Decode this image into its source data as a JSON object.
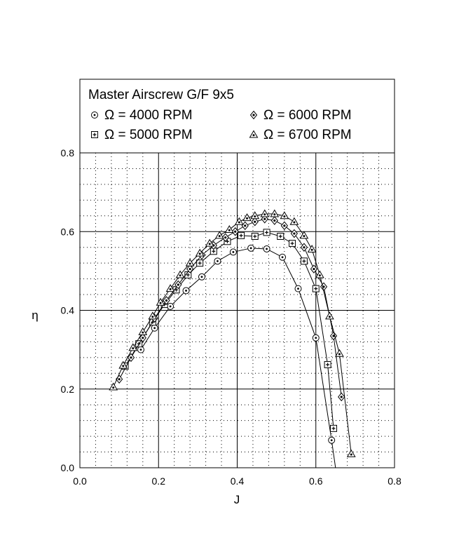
{
  "chart_data": {
    "type": "line",
    "title": "Master Airscrew G/F 9x5",
    "xlabel": "J",
    "ylabel": "η",
    "xlim": [
      0.0,
      0.8
    ],
    "ylim": [
      0.0,
      0.8
    ],
    "xticks": [
      "0.0",
      "0.2",
      "0.4",
      "0.6",
      "0.8"
    ],
    "yticks": [
      "0.0",
      "0.2",
      "0.4",
      "0.6",
      "0.8"
    ],
    "grid": true,
    "legend": "top",
    "series": [
      {
        "name": "Ω = 4000 RPM",
        "marker": "circle-dot",
        "x": [
          0.155,
          0.19,
          0.23,
          0.27,
          0.31,
          0.35,
          0.39,
          0.435,
          0.475,
          0.515,
          0.555,
          0.6,
          0.64,
          0.65
        ],
        "y": [
          0.3,
          0.355,
          0.41,
          0.45,
          0.485,
          0.525,
          0.548,
          0.558,
          0.556,
          0.535,
          0.455,
          0.33,
          0.07,
          0.0
        ]
      },
      {
        "name": "Ω = 5000 RPM",
        "marker": "square-plus",
        "x": [
          0.115,
          0.15,
          0.185,
          0.215,
          0.245,
          0.275,
          0.305,
          0.34,
          0.375,
          0.41,
          0.445,
          0.475,
          0.51,
          0.54,
          0.57,
          0.6,
          0.63,
          0.645
        ],
        "y": [
          0.258,
          0.315,
          0.37,
          0.415,
          0.452,
          0.49,
          0.52,
          0.55,
          0.575,
          0.59,
          0.588,
          0.598,
          0.588,
          0.57,
          0.525,
          0.455,
          0.262,
          0.1
        ]
      },
      {
        "name": "Ω = 6000 RPM",
        "marker": "diamond-dot",
        "x": [
          0.1,
          0.13,
          0.16,
          0.19,
          0.22,
          0.25,
          0.28,
          0.31,
          0.34,
          0.37,
          0.395,
          0.42,
          0.445,
          0.47,
          0.495,
          0.52,
          0.545,
          0.57,
          0.595,
          0.62,
          0.645,
          0.665
        ],
        "y": [
          0.225,
          0.28,
          0.33,
          0.38,
          0.425,
          0.465,
          0.505,
          0.54,
          0.565,
          0.585,
          0.6,
          0.615,
          0.625,
          0.632,
          0.628,
          0.615,
          0.595,
          0.56,
          0.505,
          0.46,
          0.335,
          0.18
        ]
      },
      {
        "name": "Ω = 6700 RPM",
        "marker": "triangle-dot",
        "x": [
          0.085,
          0.11,
          0.135,
          0.16,
          0.185,
          0.205,
          0.23,
          0.255,
          0.28,
          0.305,
          0.33,
          0.355,
          0.38,
          0.405,
          0.425,
          0.445,
          0.47,
          0.495,
          0.52,
          0.545,
          0.57,
          0.59,
          0.61,
          0.635,
          0.66,
          0.69
        ],
        "y": [
          0.205,
          0.26,
          0.305,
          0.345,
          0.385,
          0.42,
          0.455,
          0.49,
          0.52,
          0.545,
          0.57,
          0.59,
          0.605,
          0.625,
          0.635,
          0.64,
          0.645,
          0.645,
          0.64,
          0.625,
          0.59,
          0.555,
          0.49,
          0.385,
          0.29,
          0.035
        ]
      }
    ]
  }
}
